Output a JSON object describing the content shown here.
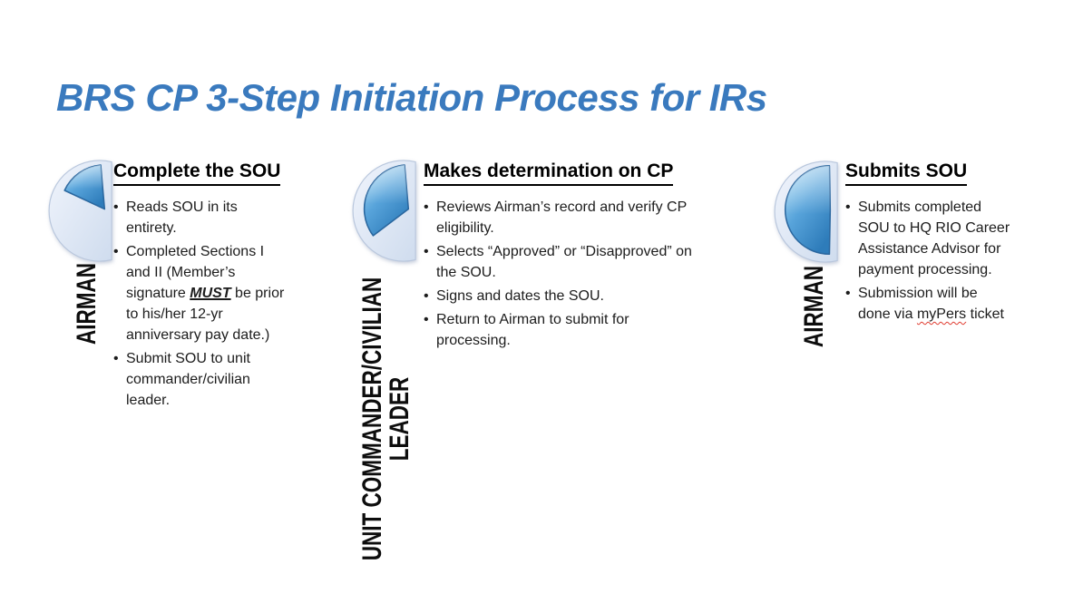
{
  "title": {
    "text": "BRS CP 3-Step Initiation Process for IRs",
    "color": "#3a7abe"
  },
  "icon_colors": {
    "wedge_light": "#aadcf7",
    "wedge_mid": "#57a3da",
    "wedge_dark": "#2e7cba",
    "wedge_stroke": "#2a679f",
    "base_light": "#f0f4fc",
    "base_dark": "#cfdcee",
    "base_stroke": "#b9c7dd"
  },
  "steps": [
    {
      "role_lines": [
        "AIRMAN"
      ],
      "icon": {
        "name": "pie-progress-1-icon",
        "start_deg": 95,
        "sweep_deg": 60,
        "fraction_label": "small wedge"
      },
      "heading": "Complete the SOU",
      "bullets": [
        [
          {
            "text": "Reads SOU in its entirety."
          }
        ],
        [
          {
            "text": "Completed Sections I and II (Member’s signature "
          },
          {
            "text": "MUST",
            "style": "emphasis"
          },
          {
            "text": " be prior to his/her 12-yr anniversary pay date.)"
          }
        ],
        [
          {
            "text": "Submit SOU to unit commander/civilian leader."
          }
        ]
      ]
    },
    {
      "role_lines": [
        "UNIT COMMANDER/CIVILIAN",
        "LEADER"
      ],
      "icon": {
        "name": "pie-progress-2-icon",
        "start_deg": 95,
        "sweep_deg": 122,
        "fraction_label": "third wedge"
      },
      "heading": "Makes determination on CP",
      "bullets": [
        [
          {
            "text": "Reviews Airman’s record and verify CP eligibility."
          }
        ],
        [
          {
            "text": "Selects “Approved” or “Disapproved” on the SOU."
          }
        ],
        [
          {
            "text": "Signs and dates the SOU."
          }
        ],
        [
          {
            "text": "Return to Airman to submit for processing."
          }
        ]
      ]
    },
    {
      "role_lines": [
        "AIRMAN"
      ],
      "icon": {
        "name": "pie-progress-3-icon",
        "start_deg": 91,
        "sweep_deg": 178,
        "fraction_label": "half"
      },
      "heading": "Submits SOU",
      "bullets": [
        [
          {
            "text": "Submits completed SOU to HQ RIO Career Assistance Advisor for payment processing."
          }
        ],
        [
          {
            "text": "Submission will be done via "
          },
          {
            "text": "myPers",
            "style": "spellcheck"
          },
          {
            "text": " ticket"
          }
        ]
      ]
    }
  ]
}
